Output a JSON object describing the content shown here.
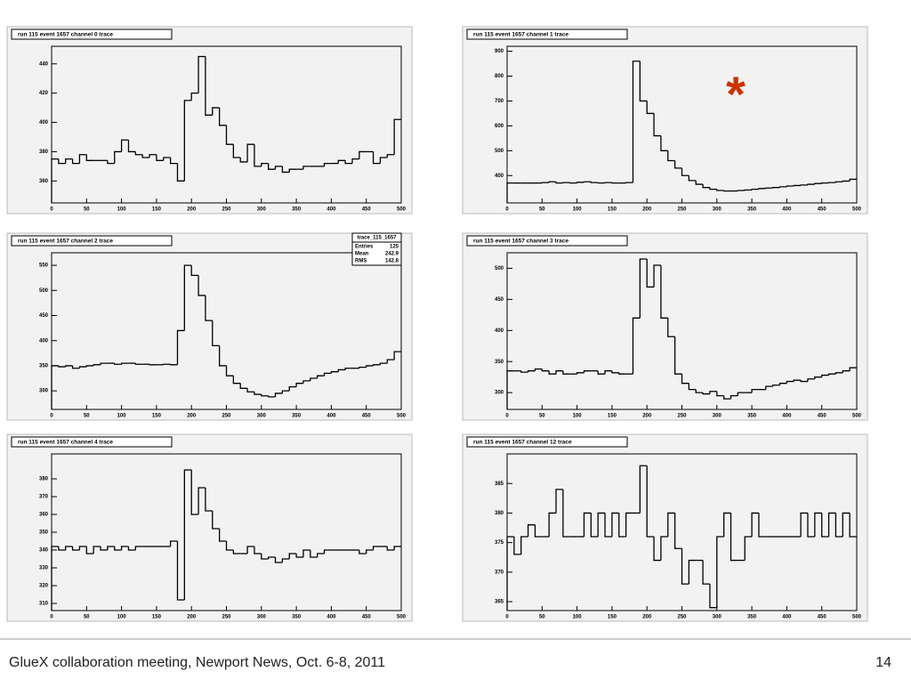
{
  "chart_data": [
    {
      "type": "histogram",
      "title": "run 115 event 1657 channel 0 trace",
      "color": "#000000",
      "bins": [
        0,
        10,
        20,
        30,
        40,
        50,
        60,
        70,
        80,
        90,
        100,
        110,
        120,
        130,
        140,
        150,
        160,
        170,
        180,
        190,
        200,
        210,
        220,
        230,
        240,
        250,
        260,
        270,
        280,
        290,
        300,
        310,
        320,
        330,
        340,
        350,
        360,
        370,
        380,
        390,
        400,
        410,
        420,
        430,
        440,
        450,
        460,
        470,
        480,
        490,
        500
      ],
      "counts": [
        375,
        372,
        375,
        372,
        378,
        374,
        374,
        374,
        372,
        380,
        388,
        380,
        378,
        376,
        378,
        374,
        376,
        372,
        360,
        415,
        420,
        445,
        405,
        410,
        398,
        385,
        376,
        373,
        385,
        370,
        372,
        368,
        370,
        366,
        368,
        368,
        370,
        370,
        370,
        372,
        372,
        374,
        372,
        375,
        380,
        380,
        372,
        376,
        378,
        402
      ],
      "xlim": [
        0,
        500
      ],
      "xticks": [
        0,
        50,
        100,
        150,
        200,
        250,
        300,
        350,
        400,
        450,
        500
      ],
      "ylim": [
        345,
        452
      ],
      "yticks": [
        360,
        380,
        400,
        420,
        440
      ]
    },
    {
      "type": "histogram",
      "title": "run 115 event 1657 channel 1 trace",
      "color": "#000000",
      "annotation": "*",
      "annotation_color": "#cc3300",
      "bins": [
        0,
        10,
        20,
        30,
        40,
        50,
        60,
        70,
        80,
        90,
        100,
        110,
        120,
        130,
        140,
        150,
        160,
        170,
        180,
        190,
        200,
        210,
        220,
        230,
        240,
        250,
        260,
        270,
        280,
        290,
        300,
        310,
        320,
        330,
        340,
        350,
        360,
        370,
        380,
        390,
        400,
        410,
        420,
        430,
        440,
        450,
        460,
        470,
        480,
        490,
        500
      ],
      "counts": [
        370,
        370,
        370,
        370,
        370,
        372,
        375,
        370,
        372,
        370,
        373,
        375,
        372,
        370,
        372,
        370,
        370,
        372,
        860,
        700,
        650,
        560,
        500,
        460,
        430,
        400,
        380,
        365,
        352,
        345,
        340,
        338,
        338,
        340,
        342,
        345,
        348,
        350,
        352,
        355,
        358,
        360,
        362,
        365,
        368,
        370,
        372,
        375,
        378,
        385
      ],
      "xlim": [
        0,
        500
      ],
      "xticks": [
        0,
        50,
        100,
        150,
        200,
        250,
        300,
        350,
        400,
        450,
        500
      ],
      "ylim": [
        290,
        920
      ],
      "yticks": [
        400,
        500,
        600,
        700,
        800,
        900
      ]
    },
    {
      "type": "histogram",
      "title": "run 115 event 1657 channel 2 trace",
      "color": "#000000",
      "stats": {
        "title": "trace_115_1657",
        "rows": [
          [
            "Entries",
            "125"
          ],
          [
            "Mean",
            "242.9"
          ],
          [
            "RMS",
            "142.8"
          ]
        ]
      },
      "bins": [
        0,
        10,
        20,
        30,
        40,
        50,
        60,
        70,
        80,
        90,
        100,
        110,
        120,
        130,
        140,
        150,
        160,
        170,
        180,
        190,
        200,
        210,
        220,
        230,
        240,
        250,
        260,
        270,
        280,
        290,
        300,
        310,
        320,
        330,
        340,
        350,
        360,
        370,
        380,
        390,
        400,
        410,
        420,
        430,
        440,
        450,
        460,
        470,
        480,
        490,
        500
      ],
      "counts": [
        350,
        348,
        350,
        345,
        348,
        350,
        352,
        355,
        355,
        353,
        355,
        355,
        353,
        353,
        352,
        352,
        353,
        352,
        420,
        550,
        530,
        490,
        440,
        390,
        350,
        330,
        315,
        305,
        298,
        293,
        290,
        288,
        295,
        300,
        308,
        315,
        320,
        325,
        330,
        335,
        338,
        342,
        345,
        345,
        347,
        350,
        352,
        355,
        362,
        378
      ],
      "xlim": [
        0,
        500
      ],
      "xticks": [
        0,
        50,
        100,
        150,
        200,
        250,
        300,
        350,
        400,
        450,
        500
      ],
      "ylim": [
        263,
        575
      ],
      "yticks": [
        300,
        350,
        400,
        450,
        500,
        550
      ]
    },
    {
      "type": "histogram",
      "title": "run 115 event 1657 channel 3 trace",
      "color": "#000000",
      "bins": [
        0,
        10,
        20,
        30,
        40,
        50,
        60,
        70,
        80,
        90,
        100,
        110,
        120,
        130,
        140,
        150,
        160,
        170,
        180,
        190,
        200,
        210,
        220,
        230,
        240,
        250,
        260,
        270,
        280,
        290,
        300,
        310,
        320,
        330,
        340,
        350,
        360,
        370,
        380,
        390,
        400,
        410,
        420,
        430,
        440,
        450,
        460,
        470,
        480,
        490,
        500
      ],
      "counts": [
        335,
        335,
        333,
        335,
        338,
        335,
        330,
        335,
        330,
        330,
        332,
        335,
        335,
        330,
        335,
        332,
        330,
        330,
        420,
        515,
        470,
        505,
        420,
        390,
        330,
        315,
        305,
        300,
        298,
        302,
        295,
        290,
        295,
        300,
        300,
        305,
        305,
        310,
        312,
        315,
        318,
        320,
        318,
        322,
        325,
        328,
        330,
        332,
        335,
        340
      ],
      "xlim": [
        0,
        500
      ],
      "xticks": [
        0,
        50,
        100,
        150,
        200,
        250,
        300,
        350,
        400,
        450,
        500
      ],
      "ylim": [
        273,
        525
      ],
      "yticks": [
        300,
        350,
        400,
        450,
        500
      ]
    },
    {
      "type": "histogram",
      "title": "run 115 event 1657 channel 4 trace",
      "color": "#000000",
      "bins": [
        0,
        10,
        20,
        30,
        40,
        50,
        60,
        70,
        80,
        90,
        100,
        110,
        120,
        130,
        140,
        150,
        160,
        170,
        180,
        190,
        200,
        210,
        220,
        230,
        240,
        250,
        260,
        270,
        280,
        290,
        300,
        310,
        320,
        330,
        340,
        350,
        360,
        370,
        380,
        390,
        400,
        410,
        420,
        430,
        440,
        450,
        460,
        470,
        480,
        490,
        500
      ],
      "counts": [
        342,
        340,
        342,
        340,
        342,
        338,
        342,
        340,
        342,
        340,
        342,
        340,
        342,
        342,
        342,
        342,
        342,
        345,
        312,
        385,
        360,
        375,
        362,
        352,
        345,
        340,
        338,
        338,
        342,
        338,
        335,
        336,
        333,
        335,
        338,
        336,
        340,
        336,
        338,
        340,
        340,
        340,
        340,
        340,
        338,
        340,
        342,
        342,
        340,
        342
      ],
      "xlim": [
        0,
        500
      ],
      "xticks": [
        0,
        50,
        100,
        150,
        200,
        250,
        300,
        350,
        400,
        450,
        500
      ],
      "ylim": [
        306,
        394
      ],
      "yticks": [
        310,
        320,
        330,
        340,
        350,
        360,
        370,
        380
      ]
    },
    {
      "type": "histogram",
      "title": "run 115 event 1657 channel 12 trace",
      "color": "#000000",
      "bins": [
        0,
        10,
        20,
        30,
        40,
        50,
        60,
        70,
        80,
        90,
        100,
        110,
        120,
        130,
        140,
        150,
        160,
        170,
        180,
        190,
        200,
        210,
        220,
        230,
        240,
        250,
        260,
        270,
        280,
        290,
        300,
        310,
        320,
        330,
        340,
        350,
        360,
        370,
        380,
        390,
        400,
        410,
        420,
        430,
        440,
        450,
        460,
        470,
        480,
        490,
        500
      ],
      "counts": [
        376,
        373,
        376,
        378,
        376,
        376,
        380,
        384,
        376,
        376,
        376,
        380,
        376,
        380,
        376,
        380,
        376,
        380,
        380,
        388,
        376,
        372,
        376,
        380,
        374,
        368,
        372,
        372,
        368,
        364,
        376,
        380,
        372,
        372,
        376,
        380,
        376,
        376,
        376,
        376,
        376,
        376,
        380,
        376,
        380,
        376,
        380,
        376,
        380,
        376
      ],
      "xlim": [
        0,
        500
      ],
      "xticks": [
        0,
        50,
        100,
        150,
        200,
        250,
        300,
        350,
        400,
        450,
        500
      ],
      "ylim": [
        363.5,
        390
      ],
      "yticks": [
        365,
        370,
        375,
        380,
        385
      ]
    }
  ],
  "footer": {
    "text": "GlueX collaboration meeting, Newport News, Oct. 6-8, 2011",
    "page": "14"
  }
}
